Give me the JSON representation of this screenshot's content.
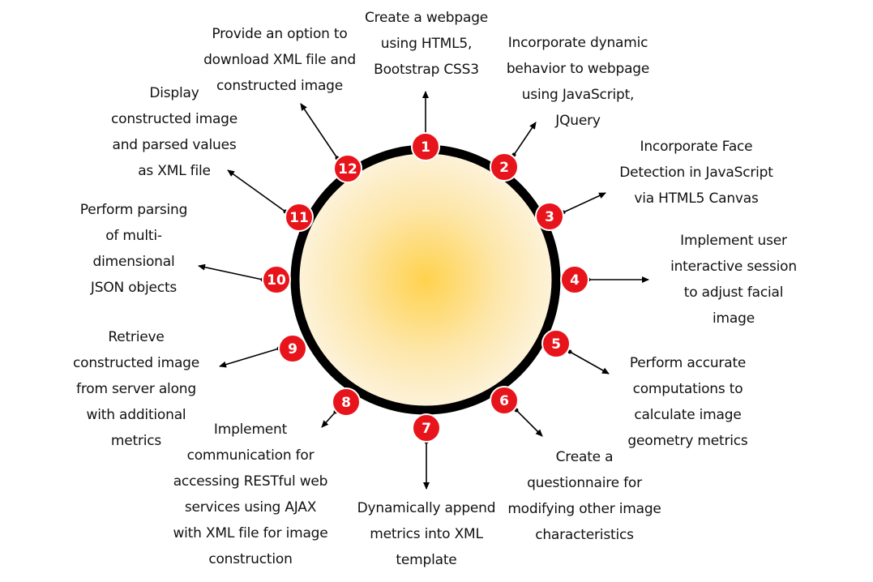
{
  "diagram": {
    "colors": {
      "ring": "#000000",
      "badge_fill": "#e8141b",
      "badge_stroke": "#ffffff",
      "badge_text": "#ffffff",
      "center_glow_inner": "#ffd24d",
      "center_glow_outer": "#fdf3dc",
      "arrow": "#000000",
      "text": "#111111"
    },
    "steps": [
      {
        "number": "1",
        "text": "Create a webpage\nusing HTML5,\nBootstrap CSS3"
      },
      {
        "number": "2",
        "text": "Incorporate dynamic\nbehavior to webpage\nusing JavaScript,\nJQuery"
      },
      {
        "number": "3",
        "text": "Incorporate Face\nDetection in JavaScript\nvia HTML5 Canvas"
      },
      {
        "number": "4",
        "text": "Implement user\ninteractive session\nto adjust facial\nimage"
      },
      {
        "number": "5",
        "text": "Perform accurate\ncomputations to\ncalculate image\ngeometry metrics"
      },
      {
        "number": "6",
        "text": "Create a\nquestionnaire for\nmodifying other image\ncharacteristics"
      },
      {
        "number": "7",
        "text": "Dynamically append\nmetrics into XML\ntemplate"
      },
      {
        "number": "8",
        "text": "Implement\ncommunication for\naccessing RESTful web\nservices using AJAX\nwith XML file for image\nconstruction"
      },
      {
        "number": "9",
        "text": "Retrieve\nconstructed image\nfrom server along\nwith additional\nmetrics"
      },
      {
        "number": "10",
        "text": "Perform parsing\nof multi-\ndimensional\nJSON objects"
      },
      {
        "number": "11",
        "text": "Display\nconstructed image\nand parsed values\nas XML file"
      },
      {
        "number": "12",
        "text": "Provide an option to\ndownload XML file and\nconstructed image"
      }
    ]
  }
}
